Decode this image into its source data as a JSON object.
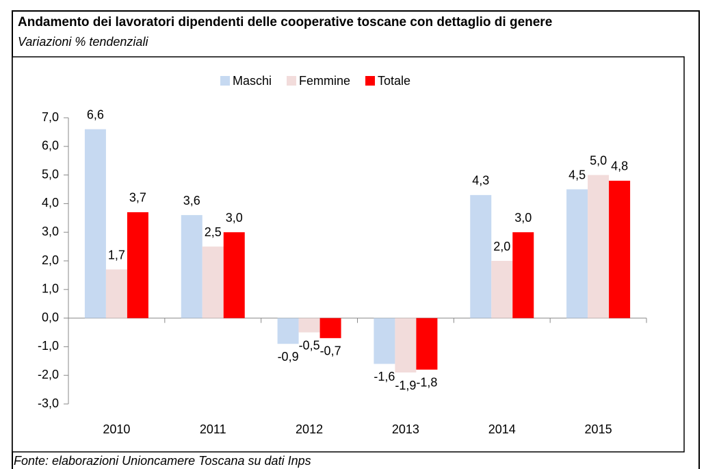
{
  "chart_data": {
    "type": "bar",
    "title": "Andamento dei lavoratori dipendenti delle cooperative toscane con dettaglio di genere",
    "subtitle": "Variazioni % tendenziali",
    "source": "Fonte: elaborazioni Unioncamere Toscana su dati Inps",
    "categories": [
      "2010",
      "2011",
      "2012",
      "2013",
      "2014",
      "2015"
    ],
    "series": [
      {
        "name": "Maschi",
        "color": "#c6d9f1",
        "values": [
          6.6,
          3.6,
          -0.9,
          -1.6,
          4.3,
          4.5
        ],
        "value_labels": [
          "6,6",
          "3,6",
          "-0,9",
          "-1,6",
          "4,3",
          "4,5"
        ]
      },
      {
        "name": "Femmine",
        "color": "#f2dcdb",
        "values": [
          1.7,
          2.5,
          -0.5,
          -1.9,
          2.0,
          5.0
        ],
        "value_labels": [
          "1,7",
          "2,5",
          "-0,5",
          "-1,9",
          "2,0",
          "5,0"
        ]
      },
      {
        "name": "Totale",
        "color": "#ff0000",
        "values": [
          3.7,
          3.0,
          -0.7,
          -1.8,
          3.0,
          4.8
        ],
        "value_labels": [
          "3,7",
          "3,0",
          "-0,7",
          "-1,8",
          "3,0",
          "4,8"
        ]
      }
    ],
    "ylim": [
      -3,
      7
    ],
    "yticks": [
      {
        "value": -3,
        "label": "-3,0"
      },
      {
        "value": -2,
        "label": "-2,0"
      },
      {
        "value": -1,
        "label": "-1,0"
      },
      {
        "value": 0,
        "label": "0,0"
      },
      {
        "value": 1,
        "label": "1,0"
      },
      {
        "value": 2,
        "label": "2,0"
      },
      {
        "value": 3,
        "label": "3,0"
      },
      {
        "value": 4,
        "label": "4,0"
      },
      {
        "value": 5,
        "label": "5,0"
      },
      {
        "value": 6,
        "label": "6,0"
      },
      {
        "value": 7,
        "label": "7,0"
      }
    ],
    "legend": "top",
    "grid": false
  }
}
